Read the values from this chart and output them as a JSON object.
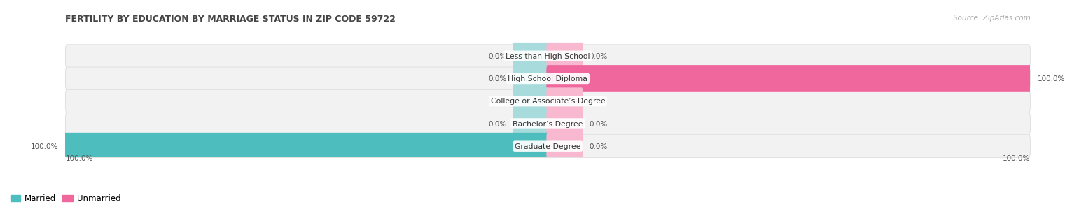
{
  "title": "FERTILITY BY EDUCATION BY MARRIAGE STATUS IN ZIP CODE 59722",
  "source": "Source: ZipAtlas.com",
  "categories": [
    "Less than High School",
    "High School Diploma",
    "College or Associate’s Degree",
    "Bachelor’s Degree",
    "Graduate Degree"
  ],
  "married_values": [
    0.0,
    0.0,
    0.0,
    0.0,
    100.0
  ],
  "unmarried_values": [
    0.0,
    100.0,
    0.0,
    0.0,
    0.0
  ],
  "married_color": "#4dbdbd",
  "unmarried_color": "#f0679e",
  "married_stub_color": "#a8dcdc",
  "unmarried_stub_color": "#f8b8cf",
  "row_bg_color": "#f2f2f2",
  "row_border_color": "#dddddd",
  "title_color": "#444444",
  "label_color": "#333333",
  "value_color": "#555555",
  "source_color": "#aaaaaa",
  "bg_color": "#ffffff",
  "title_fontsize": 9,
  "label_fontsize": 7.8,
  "value_fontsize": 7.5,
  "legend_fontsize": 8.5,
  "source_fontsize": 7.5,
  "stub_pct": 7,
  "max_val": 100
}
